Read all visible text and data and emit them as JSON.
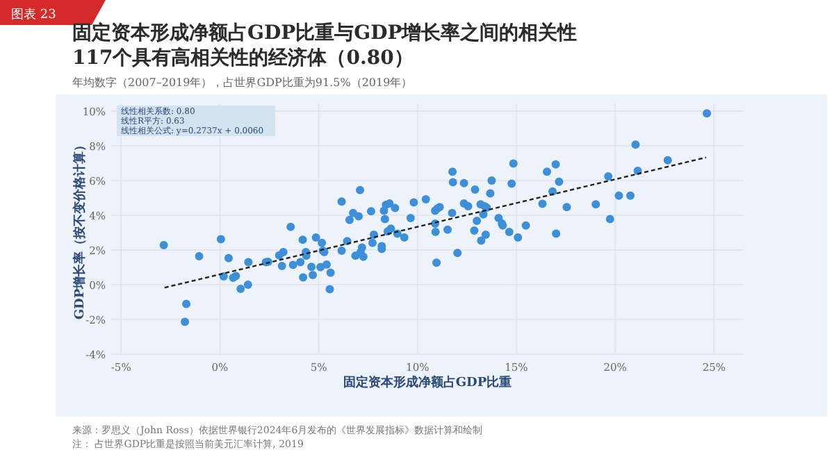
{
  "chart_data": {
    "type": "scatter",
    "title": "固定资本形成净额占GDP比重与GDP增长率之间的相关性\n117个具有高相关性的经济体（0.80）",
    "subtitle": "年均数字（2007–2019年），占世界GDP比重为91.5%（2019年）",
    "xlabel": "固定资本形成净额占GDP比重",
    "ylabel": "GDP增长率（按不变价格计算）",
    "annotations": [
      "图表 23",
      "线性相关系数: 0.80",
      "线性R平方: 0.63",
      "线性相关公式: y=0.2737x + 0.0060",
      "来源：罗思义（John Ross）依据世界银行2024年6月发布的《世界发展指标》数据计算和绘制",
      "注：    占世界GDP比重是按照当前美元汇率计算, 2019"
    ],
    "xlim": [
      -5.5,
      26.5
    ],
    "ylim": [
      -4,
      10.4
    ],
    "xticks": [
      {
        "value": -5,
        "label": "-5%"
      },
      {
        "value": 0,
        "label": "0%"
      },
      {
        "value": 5,
        "label": "5%"
      },
      {
        "value": 10,
        "label": "10%"
      },
      {
        "value": 15,
        "label": "15%"
      },
      {
        "value": 20,
        "label": "20%"
      },
      {
        "value": 25,
        "label": "25%"
      }
    ],
    "yticks": [
      {
        "value": -4,
        "label": "-4%"
      },
      {
        "value": -2,
        "label": "-2%"
      },
      {
        "value": 0,
        "label": "0%"
      },
      {
        "value": 2,
        "label": "2%"
      },
      {
        "value": 4,
        "label": "4%"
      },
      {
        "value": 6,
        "label": "6%"
      },
      {
        "value": 8,
        "label": "8%"
      },
      {
        "value": 10,
        "label": "10%"
      }
    ],
    "grid": true,
    "series": [
      {
        "color": "#3d8fd8",
        "marker": "circle",
        "x": [
          -2.84,
          -1.7,
          -1.77,
          -1.05,
          0.05,
          0.19,
          0.44,
          0.67,
          0.81,
          1.05,
          1.44,
          1.42,
          2.33,
          2.44,
          3.0,
          3.14,
          3.21,
          3.58,
          3.7,
          4.07,
          4.19,
          4.21,
          4.35,
          4.37,
          4.63,
          4.7,
          4.86,
          5.09,
          5.16,
          5.21,
          5.28,
          5.4,
          5.56,
          5.6,
          6.16,
          6.16,
          6.44,
          6.56,
          6.74,
          6.86,
          7.02,
          7.09,
          7.12,
          7.19,
          7.26,
          7.65,
          7.72,
          7.79,
          8.19,
          8.19,
          8.3,
          8.35,
          8.4,
          8.49,
          8.58,
          8.65,
          8.86,
          8.98,
          9.33,
          9.65,
          9.81,
          10.42,
          10.89,
          11.0,
          11.12,
          10.89,
          10.91,
          10.96,
          11.52,
          11.75,
          11.77,
          11.79,
          12.02,
          12.35,
          12.35,
          12.56,
          12.87,
          12.91,
          13.0,
          13.19,
          13.22,
          13.33,
          13.4,
          13.45,
          13.5,
          13.68,
          13.75,
          14.1,
          14.27,
          14.31,
          14.64,
          14.76,
          14.85,
          15.08,
          15.48,
          16.32,
          16.55,
          16.83,
          16.99,
          17.01,
          17.16,
          17.55,
          19.02,
          19.65,
          19.74,
          20.19,
          20.77,
          21.03,
          21.14,
          22.66,
          24.64
        ],
        "values": [
          2.28,
          -1.11,
          -2.14,
          1.64,
          2.62,
          0.48,
          1.53,
          0.4,
          0.5,
          -0.24,
          1.3,
          0.0,
          1.3,
          1.32,
          1.69,
          1.08,
          1.88,
          3.33,
          1.14,
          1.3,
          2.59,
          0.42,
          1.88,
          1.67,
          1.03,
          0.56,
          2.72,
          1.01,
          2.41,
          1.96,
          1.88,
          1.16,
          -0.26,
          0.69,
          4.79,
          1.96,
          2.51,
          3.73,
          4.13,
          1.67,
          3.94,
          5.45,
          1.88,
          2.14,
          1.61,
          4.23,
          2.41,
          2.88,
          2.06,
          2.22,
          4.26,
          3.78,
          4.6,
          3.07,
          4.68,
          3.23,
          4.42,
          2.94,
          2.72,
          3.84,
          4.74,
          4.92,
          4.26,
          4.39,
          4.47,
          3.52,
          3.04,
          1.27,
          3.17,
          4.13,
          6.51,
          5.9,
          1.83,
          5.85,
          4.68,
          4.52,
          3.12,
          5.48,
          3.68,
          4.63,
          2.54,
          4.05,
          4.52,
          2.88,
          4.44,
          5.26,
          6.0,
          3.84,
          3.52,
          3.41,
          3.04,
          5.82,
          6.98,
          2.72,
          3.41,
          4.66,
          6.51,
          5.37,
          6.93,
          2.94,
          5.93,
          4.47,
          4.63,
          6.24,
          3.78,
          5.13,
          5.13,
          8.07,
          6.56,
          7.17,
          9.87
        ]
      },
      {
        "type": "line",
        "color": "#222222",
        "line_style": "dashed",
        "x": [
          -2.8,
          24.6
        ],
        "values": [
          -0.17,
          7.33
        ]
      }
    ]
  }
}
